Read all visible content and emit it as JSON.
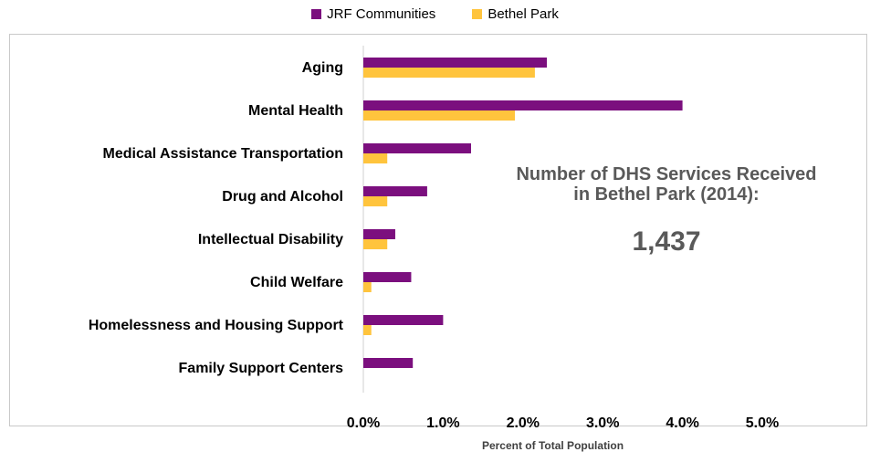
{
  "chart_data": {
    "type": "bar",
    "orientation": "horizontal",
    "title": "",
    "categories": [
      "Aging",
      "Mental Health",
      "Medical Assistance Transportation",
      "Drug and Alcohol",
      "Intellectual Disability",
      "Child Welfare",
      "Homelessness and Housing Support",
      "Family Support Centers"
    ],
    "series": [
      {
        "name": "JRF Communities",
        "color": "#7B0F7E",
        "values": [
          2.3,
          4.0,
          1.35,
          0.8,
          0.4,
          0.6,
          1.0,
          0.62
        ]
      },
      {
        "name": "Bethel Park",
        "color": "#FFC43D",
        "values": [
          2.15,
          1.9,
          0.3,
          0.3,
          0.3,
          0.1,
          0.1,
          0
        ]
      }
    ],
    "xlabel": "Percent of Total Population",
    "xlim": [
      0,
      5
    ],
    "xticks": [
      "0.0%",
      "1.0%",
      "2.0%",
      "3.0%",
      "4.0%",
      "5.0%"
    ],
    "legend_position": "top",
    "grid": false
  },
  "annotation": {
    "text": "Number of DHS Services Received in Bethel Park (2014):",
    "value": "1,437"
  }
}
